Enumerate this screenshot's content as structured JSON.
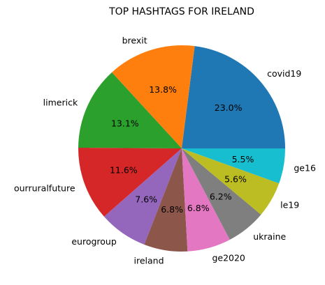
{
  "chart_data": {
    "type": "pie",
    "title": "TOP HASHTAGS FOR IRELAND",
    "start_angle_deg": 0,
    "direction": "counterclockwise",
    "slices": [
      {
        "label": "covid19",
        "value": 23.0,
        "pct_text": "23.0%",
        "color": "#1f77b4"
      },
      {
        "label": "brexit",
        "value": 13.8,
        "pct_text": "13.8%",
        "color": "#ff7f0e"
      },
      {
        "label": "limerick",
        "value": 13.1,
        "pct_text": "13.1%",
        "color": "#2ca02c"
      },
      {
        "label": "ourruralfuture",
        "value": 11.6,
        "pct_text": "11.6%",
        "color": "#d62728"
      },
      {
        "label": "eurogroup",
        "value": 7.6,
        "pct_text": "7.6%",
        "color": "#9467bd"
      },
      {
        "label": "ireland",
        "value": 6.8,
        "pct_text": "6.8%",
        "color": "#8c564b"
      },
      {
        "label": "ge2020",
        "value": 6.8,
        "pct_text": "6.8%",
        "color": "#e377c2"
      },
      {
        "label": "ukraine",
        "value": 6.2,
        "pct_text": "6.2%",
        "color": "#7f7f7f"
      },
      {
        "label": "le19",
        "value": 5.6,
        "pct_text": "5.6%",
        "color": "#bcbd22"
      },
      {
        "label": "ge16",
        "value": 5.5,
        "pct_text": "5.5%",
        "color": "#17becf"
      }
    ]
  }
}
